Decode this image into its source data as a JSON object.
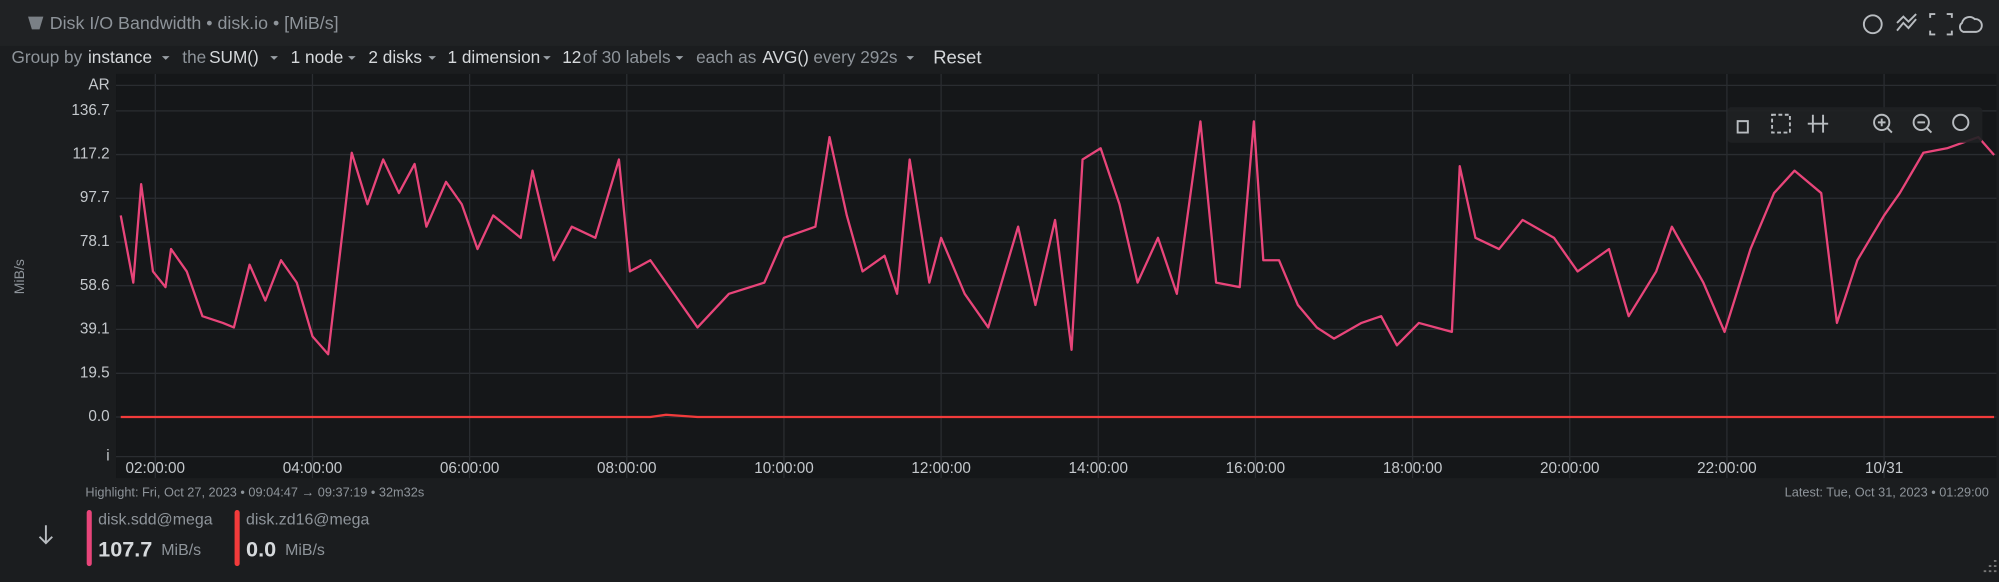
{
  "header": {
    "title": "Disk I/O Bandwidth • disk.io • [MiB/s]"
  },
  "toolbar": {
    "group_by": "Group by",
    "group_value": "instance",
    "the": "the",
    "aggregation": "SUM()",
    "nodes": "1 node",
    "disks": "2 disks",
    "dimensions": "1 dimension",
    "labels_count": "12",
    "labels_total": "of 30 labels",
    "each_as": "each as",
    "time_agg": "AVG()",
    "every": "every 292s",
    "reset": "Reset"
  },
  "chart_data": {
    "type": "line",
    "y_label": "MiB/s",
    "x": [
      1.56,
      1.72,
      1.82,
      1.97,
      2.13,
      2.2,
      2.4,
      2.6,
      2.86,
      3.0,
      3.2,
      3.4,
      3.6,
      3.8,
      4.0,
      4.2,
      4.5,
      4.7,
      4.9,
      5.1,
      5.3,
      5.45,
      5.7,
      5.9,
      6.1,
      6.3,
      6.65,
      6.8,
      7.07,
      7.3,
      7.6,
      7.9,
      8.04,
      8.3,
      8.5,
      8.9,
      9.3,
      9.75,
      10.0,
      10.4,
      10.58,
      10.8,
      11.0,
      11.28,
      11.44,
      11.6,
      11.85,
      12.0,
      12.3,
      12.6,
      12.98,
      13.2,
      13.45,
      13.66,
      13.8,
      14.03,
      14.27,
      14.5,
      14.76,
      15.0,
      15.3,
      15.5,
      15.8,
      15.98,
      16.1,
      16.3,
      16.54,
      16.78,
      17.0,
      17.35,
      17.6,
      17.8,
      18.08,
      18.5,
      18.6,
      18.8,
      19.1,
      19.4,
      19.8,
      20.1,
      20.5,
      20.75,
      21.1,
      21.3,
      21.7,
      21.97,
      22.3,
      22.6,
      22.86,
      23.2,
      23.4,
      23.66,
      24.0,
      24.2,
      24.5,
      24.8,
      25.2,
      25.4
    ],
    "series": [
      {
        "name": "disk.sdd@mega",
        "color": "#e8457a",
        "values": [
          90,
          60,
          104,
          65,
          58,
          75,
          65,
          45,
          42,
          40,
          68,
          52,
          70,
          60,
          36,
          28,
          118,
          95,
          115,
          100,
          113,
          85,
          105,
          95,
          75,
          90,
          80,
          110,
          70,
          85,
          80,
          115,
          65,
          70,
          60,
          40,
          55,
          60,
          80,
          85,
          125,
          90,
          65,
          72,
          55,
          115,
          60,
          80,
          55,
          40,
          85,
          50,
          88,
          30,
          115,
          120,
          95,
          60,
          80,
          55,
          132,
          60,
          58,
          132,
          70,
          70,
          50,
          40,
          35,
          42,
          45,
          32,
          42,
          38,
          112,
          80,
          75,
          88,
          80,
          65,
          75,
          45,
          65,
          85,
          60,
          38,
          75,
          100,
          110,
          100,
          42,
          70,
          90,
          100,
          118,
          120,
          125,
          117
        ]
      },
      {
        "name": "disk.zd16@mega",
        "color": "#f23b3b",
        "values": [
          0,
          0,
          0,
          0,
          0,
          0,
          0,
          0,
          0,
          0,
          0,
          0,
          0,
          0,
          0,
          0,
          0,
          0,
          0,
          0,
          0,
          0,
          0,
          0,
          0,
          0,
          0,
          0,
          0,
          0,
          0,
          0,
          0,
          0,
          1,
          0,
          0,
          0,
          0,
          0,
          0,
          0,
          0,
          0,
          0,
          0,
          0,
          0,
          0,
          0,
          0,
          0,
          0,
          0,
          0,
          0,
          0,
          0,
          0,
          0,
          0,
          0,
          0,
          0,
          0,
          0,
          0,
          0,
          0,
          0,
          0,
          0,
          0,
          0,
          0,
          0,
          0,
          0,
          0,
          0,
          0,
          0,
          0,
          0,
          0,
          0,
          0,
          0,
          0,
          0,
          0,
          0,
          0,
          0,
          0,
          0,
          0,
          0
        ]
      }
    ],
    "xlim": [
      1.5,
      25.43
    ],
    "xticks": [
      {
        "value": 2,
        "label": "02:00:00"
      },
      {
        "value": 4,
        "label": "04:00:00"
      },
      {
        "value": 6,
        "label": "06:00:00"
      },
      {
        "value": 8,
        "label": "08:00:00"
      },
      {
        "value": 10,
        "label": "10:00:00"
      },
      {
        "value": 12,
        "label": "12:00:00"
      },
      {
        "value": 14,
        "label": "14:00:00"
      },
      {
        "value": 16,
        "label": "16:00:00"
      },
      {
        "value": 18,
        "label": "18:00:00"
      },
      {
        "value": 20,
        "label": "20:00:00"
      },
      {
        "value": 22,
        "label": "22:00:00"
      },
      {
        "value": 24,
        "label": "10/31"
      }
    ],
    "ylim": [
      -27.3,
      153.2
    ],
    "yticks": [
      {
        "value": -17.7,
        "label": "i"
      },
      {
        "value": 0,
        "label": "0.0"
      },
      19.5,
      39.1,
      58.6,
      78.1,
      97.7,
      117.2,
      136.7,
      {
        "value": 148.1,
        "label": "AR"
      }
    ],
    "grid": true
  },
  "footer": {
    "highlight": "Highlight:  Fri, Oct 27, 2023 •  09:04:47 → 09:37:19  • 32m32s",
    "latest": "Latest:  Tue, Oct 31, 2023 • 01:29:00",
    "latest_values": [
      "107.7",
      "0.0"
    ]
  }
}
